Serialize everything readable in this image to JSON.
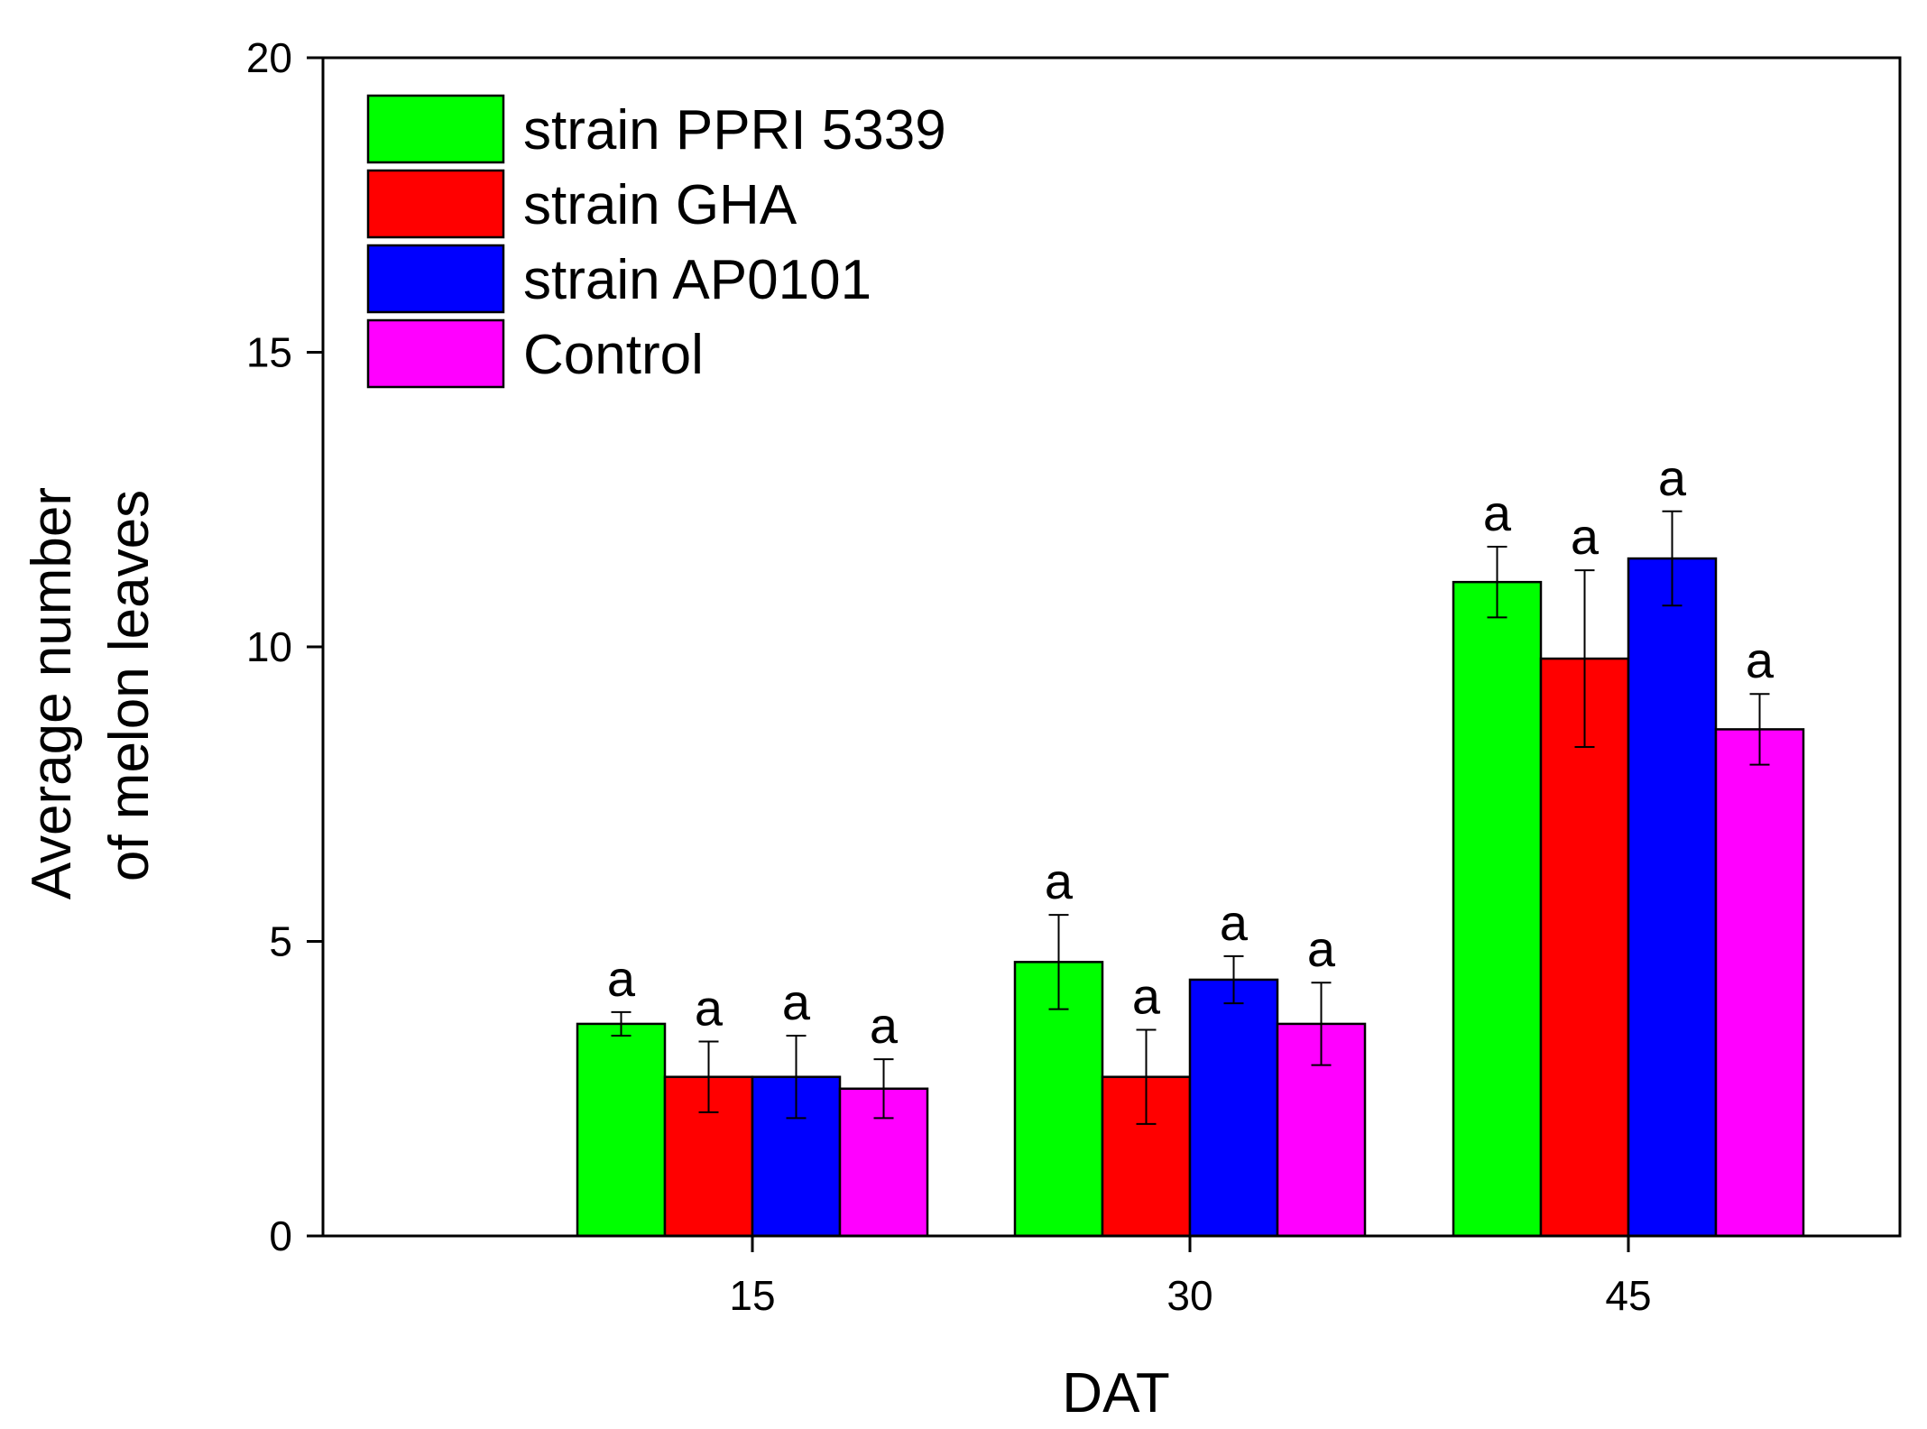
{
  "chart_data": {
    "type": "bar",
    "title": "",
    "xlabel": "DAT",
    "ylabel_lines": [
      "Average number",
      "of melon leaves"
    ],
    "categories": [
      "15",
      "30",
      "45"
    ],
    "ylim": [
      0,
      20
    ],
    "yticks": [
      "0",
      "5",
      "10",
      "15",
      "20"
    ],
    "legend_position": "top-left",
    "grid": false,
    "series": [
      {
        "name": "strain PPRI 5339",
        "color": "#00ff00",
        "values": [
          3.6,
          4.65,
          11.1
        ],
        "errors": [
          0.2,
          0.8,
          0.6
        ],
        "sig": [
          "a",
          "a",
          "a"
        ]
      },
      {
        "name": "strain GHA",
        "color": "#ff0000",
        "values": [
          2.7,
          2.7,
          9.8
        ],
        "errors": [
          0.6,
          0.8,
          1.5
        ],
        "sig": [
          "a",
          "a",
          "a"
        ]
      },
      {
        "name": "strain AP0101",
        "color": "#0000ff",
        "values": [
          2.7,
          4.35,
          11.5
        ],
        "errors": [
          0.7,
          0.4,
          0.8
        ],
        "sig": [
          "a",
          "a",
          "a"
        ]
      },
      {
        "name": "Control",
        "color": "#ff00ff",
        "values": [
          2.5,
          3.6,
          8.6
        ],
        "errors": [
          0.5,
          0.7,
          0.6
        ],
        "sig": [
          "a",
          "a",
          "a"
        ]
      }
    ]
  }
}
